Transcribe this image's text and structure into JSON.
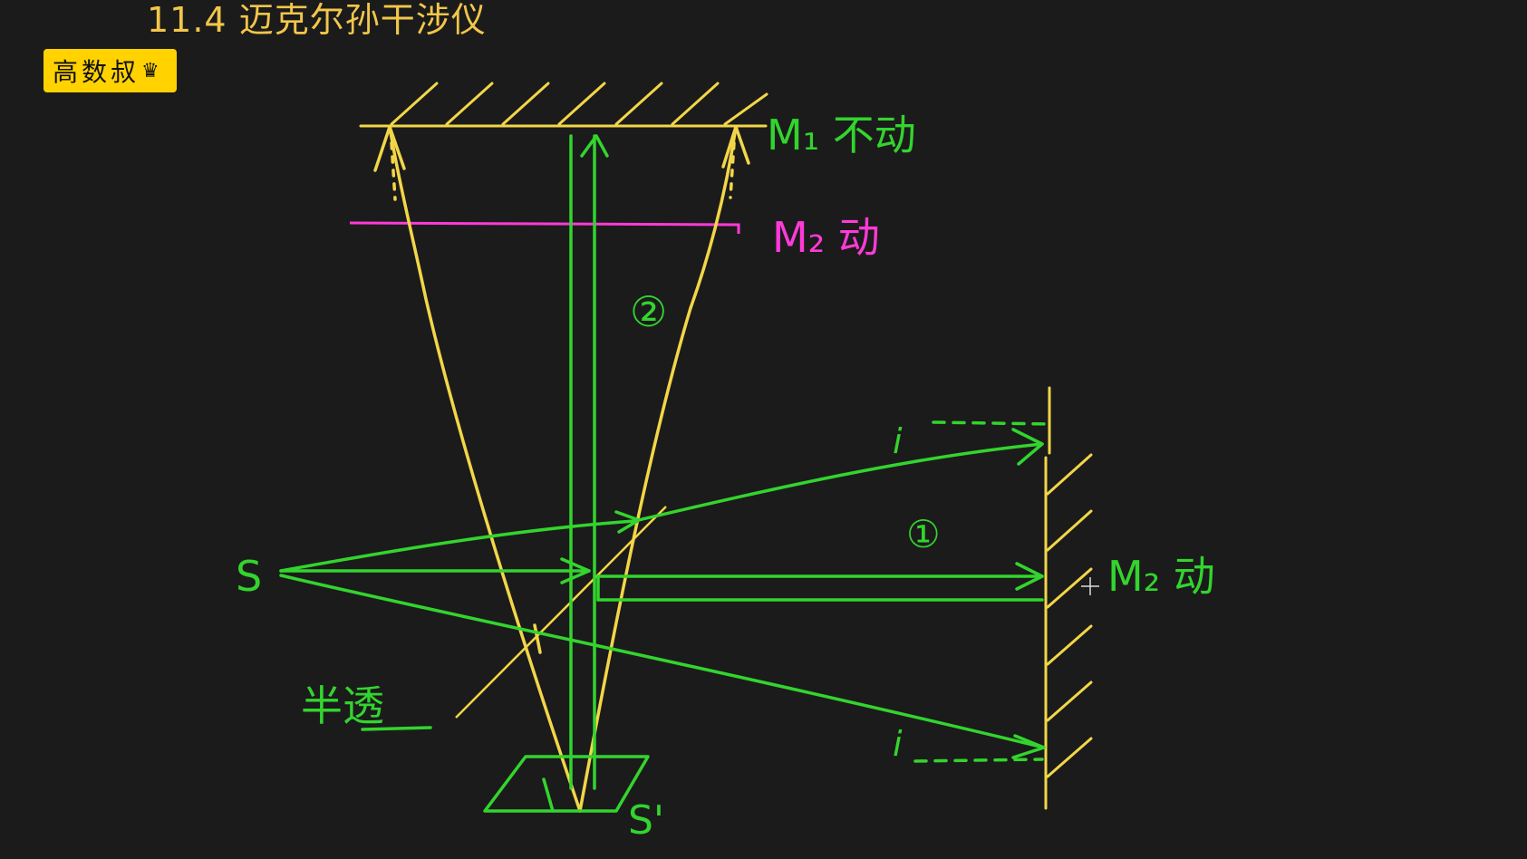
{
  "header": {
    "title": "11.4 迈克尔孙干涉仪",
    "badge_text": "高数叔",
    "badge_icon": "crown-icon"
  },
  "diagram": {
    "mirror_m1_label": "M₁ 不动",
    "mirror_m2_upper_label": "M₂ 动",
    "mirror_m2_right_label": "M₂ 动",
    "source_label": "S",
    "image_label": "S'",
    "beam_1_label": "①",
    "beam_2_label": "②",
    "splitter_label": "半透",
    "angle_upper_label": "i",
    "angle_lower_label": "i"
  },
  "colors": {
    "background": "#1b1b1b",
    "yellow": "#f2d648",
    "green": "#33d42e",
    "magenta": "#ff3ad8",
    "badge": "#ffd200"
  }
}
